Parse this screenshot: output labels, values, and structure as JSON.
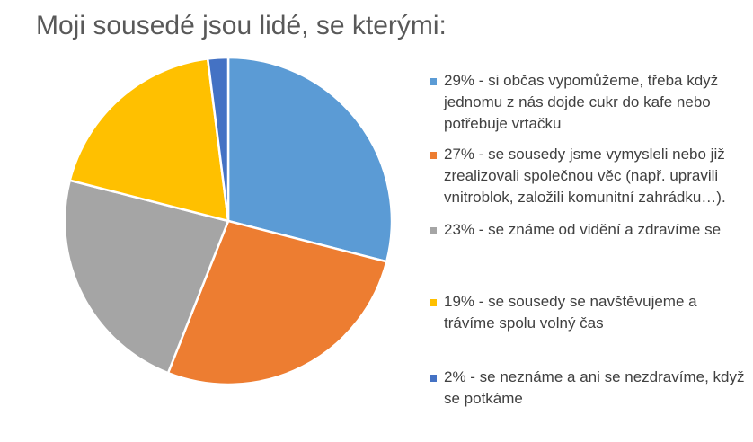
{
  "title": "Moji sousedé jsou lidé, se kterými:",
  "chart_data": {
    "type": "pie",
    "title": "Moji sousedé jsou lidé, se kterými:",
    "legend_position": "right",
    "slices": [
      {
        "label": "29% - si občas vypomůžeme, třeba když jednomu z nás dojde cukr do kafe nebo potřebuje vrtačku",
        "value": 29,
        "color": "#5B9BD5"
      },
      {
        "label": "27% - se sousedy jsme vymysleli nebo již zrealizovali společnou věc (např. upravili vnitroblok, založili komunitní zahrádku…).",
        "value": 27,
        "color": "#ED7D31"
      },
      {
        "label": "23% - se známe od vidění a zdravíme se",
        "value": 23,
        "color": "#A5A5A5"
      },
      {
        "label": "19% - se sousedy se navštěvujeme a trávíme spolu volný čas",
        "value": 19,
        "color": "#FFC000"
      },
      {
        "label": "2% - se neznáme a ani se nezdravíme, když se potkáme",
        "value": 2,
        "color": "#4472C4"
      }
    ]
  }
}
